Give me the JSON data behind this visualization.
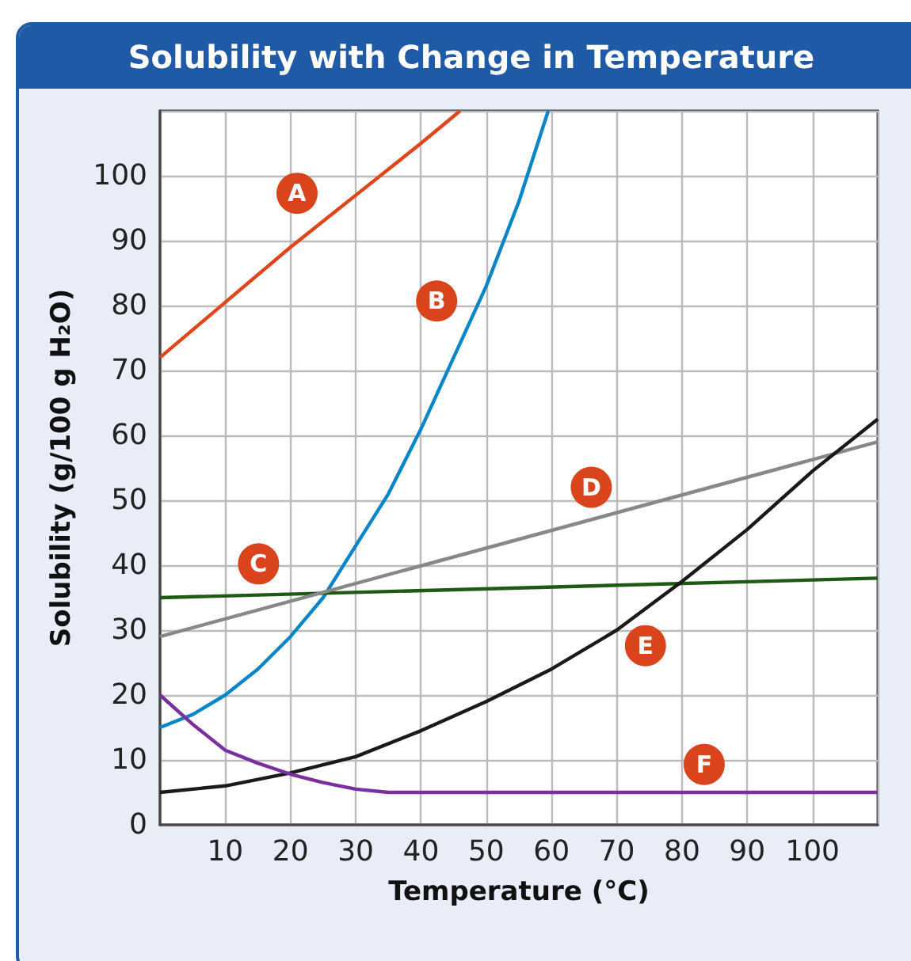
{
  "chart_data": {
    "type": "line",
    "title": "Solubility with Change in Temperature",
    "xlabel": "Temperature (°C)",
    "ylabel": "Solubility (g/100 g H₂O)",
    "xlim": [
      0,
      110
    ],
    "ylim": [
      0,
      110
    ],
    "xticks": [
      {
        "value": 0,
        "label": null
      },
      10,
      20,
      30,
      40,
      50,
      60,
      70,
      80,
      90,
      100,
      {
        "value": 110,
        "label": null
      }
    ],
    "yticks": [
      0,
      10,
      20,
      30,
      40,
      50,
      60,
      70,
      80,
      90,
      100,
      {
        "value": 110,
        "label": null
      }
    ],
    "grid": true,
    "series": [
      {
        "name": "A",
        "color": "#e0461c",
        "x": [
          0,
          10,
          20,
          30,
          40,
          46
        ],
        "values": [
          72,
          80.5,
          89,
          97,
          105,
          110
        ]
      },
      {
        "name": "B",
        "color": "#0a86c8",
        "x": [
          0,
          5,
          10,
          15,
          20,
          25,
          30,
          35,
          40,
          45,
          50,
          55,
          59.5
        ],
        "values": [
          15,
          17,
          20,
          24,
          29,
          35,
          43,
          51,
          61,
          72,
          83,
          96,
          110
        ]
      },
      {
        "name": "C",
        "color": "#1e5a14",
        "x": [
          0,
          110
        ],
        "values": [
          35,
          38
        ]
      },
      {
        "name": "D",
        "color": "#888888",
        "x": [
          0,
          110
        ],
        "values": [
          29,
          59
        ]
      },
      {
        "name": "E",
        "color": "#1a1a1a",
        "x": [
          0,
          10,
          20,
          30,
          40,
          50,
          60,
          70,
          80,
          90,
          100,
          110
        ],
        "values": [
          5,
          6,
          8,
          10.5,
          14.5,
          19,
          24,
          30,
          37.5,
          45.5,
          54.5,
          62.5
        ]
      },
      {
        "name": "F",
        "color": "#7a2fa0",
        "x": [
          0,
          5,
          10,
          15,
          20,
          25,
          30,
          35,
          110
        ],
        "values": [
          20,
          15.5,
          11.5,
          9.5,
          7.8,
          6.5,
          5.5,
          5,
          5
        ]
      }
    ]
  }
}
